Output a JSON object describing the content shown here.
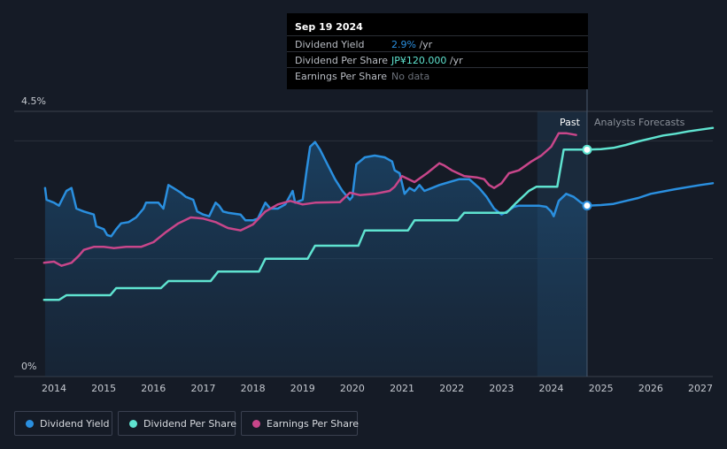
{
  "chart_data": {
    "type": "line",
    "title": "",
    "ylabel": "",
    "xlabel": "",
    "ylim": [
      0,
      4.5
    ],
    "y_ticks": [
      {
        "value": 4.5,
        "label": "4.5%"
      },
      {
        "value": 0,
        "label": "0%"
      }
    ],
    "xlim": [
      2013.8,
      2027.25
    ],
    "x_ticks": [
      {
        "value": 2014,
        "label": "2014"
      },
      {
        "value": 2015,
        "label": "2015"
      },
      {
        "value": 2016,
        "label": "2016"
      },
      {
        "value": 2017,
        "label": "2017"
      },
      {
        "value": 2018,
        "label": "2018"
      },
      {
        "value": 2019,
        "label": "2019"
      },
      {
        "value": 2020,
        "label": "2020"
      },
      {
        "value": 2021,
        "label": "2021"
      },
      {
        "value": 2022,
        "label": "2022"
      },
      {
        "value": 2023,
        "label": "2023"
      },
      {
        "value": 2024,
        "label": "2024"
      },
      {
        "value": 2025,
        "label": "2025"
      },
      {
        "value": 2026,
        "label": "2026"
      },
      {
        "value": 2027,
        "label": "2027"
      }
    ],
    "gridlines": [
      4.0,
      2.0
    ],
    "past_label": "Past",
    "forecast_label": "Analysts Forecasts",
    "past_start": 2023.72,
    "cursor_x": 2024.72,
    "series": [
      {
        "name": "Dividend Yield",
        "color": "#2a8fdf",
        "fill": true,
        "points": [
          [
            2013.82,
            3.2
          ],
          [
            2013.85,
            3.0
          ],
          [
            2014.0,
            2.95
          ],
          [
            2014.1,
            2.9
          ],
          [
            2014.25,
            3.15
          ],
          [
            2014.35,
            3.2
          ],
          [
            2014.45,
            2.85
          ],
          [
            2014.6,
            2.8
          ],
          [
            2014.8,
            2.75
          ],
          [
            2014.85,
            2.55
          ],
          [
            2015.0,
            2.5
          ],
          [
            2015.07,
            2.4
          ],
          [
            2015.15,
            2.38
          ],
          [
            2015.25,
            2.5
          ],
          [
            2015.35,
            2.6
          ],
          [
            2015.5,
            2.62
          ],
          [
            2015.65,
            2.7
          ],
          [
            2015.8,
            2.85
          ],
          [
            2015.85,
            2.95
          ],
          [
            2016.1,
            2.95
          ],
          [
            2016.2,
            2.85
          ],
          [
            2016.3,
            3.25
          ],
          [
            2016.4,
            3.2
          ],
          [
            2016.55,
            3.12
          ],
          [
            2016.65,
            3.05
          ],
          [
            2016.8,
            3.0
          ],
          [
            2016.88,
            2.8
          ],
          [
            2017.0,
            2.75
          ],
          [
            2017.12,
            2.72
          ],
          [
            2017.25,
            2.95
          ],
          [
            2017.32,
            2.9
          ],
          [
            2017.4,
            2.8
          ],
          [
            2017.5,
            2.78
          ],
          [
            2017.75,
            2.75
          ],
          [
            2017.85,
            2.65
          ],
          [
            2018.0,
            2.65
          ],
          [
            2018.1,
            2.68
          ],
          [
            2018.25,
            2.95
          ],
          [
            2018.35,
            2.85
          ],
          [
            2018.5,
            2.85
          ],
          [
            2018.65,
            2.92
          ],
          [
            2018.8,
            3.15
          ],
          [
            2018.85,
            2.95
          ],
          [
            2019.0,
            3.0
          ],
          [
            2019.08,
            3.5
          ],
          [
            2019.15,
            3.9
          ],
          [
            2019.25,
            3.98
          ],
          [
            2019.35,
            3.85
          ],
          [
            2019.5,
            3.6
          ],
          [
            2019.65,
            3.35
          ],
          [
            2019.8,
            3.15
          ],
          [
            2019.95,
            3.0
          ],
          [
            2020.0,
            3.05
          ],
          [
            2020.08,
            3.6
          ],
          [
            2020.25,
            3.72
          ],
          [
            2020.45,
            3.75
          ],
          [
            2020.65,
            3.72
          ],
          [
            2020.8,
            3.65
          ],
          [
            2020.85,
            3.5
          ],
          [
            2020.95,
            3.45
          ],
          [
            2021.05,
            3.1
          ],
          [
            2021.15,
            3.2
          ],
          [
            2021.25,
            3.15
          ],
          [
            2021.35,
            3.25
          ],
          [
            2021.45,
            3.15
          ],
          [
            2021.6,
            3.2
          ],
          [
            2021.75,
            3.25
          ],
          [
            2021.95,
            3.3
          ],
          [
            2022.15,
            3.35
          ],
          [
            2022.35,
            3.35
          ],
          [
            2022.55,
            3.2
          ],
          [
            2022.7,
            3.05
          ],
          [
            2022.85,
            2.85
          ],
          [
            2023.0,
            2.75
          ],
          [
            2023.15,
            2.82
          ],
          [
            2023.25,
            2.88
          ],
          [
            2023.35,
            2.9
          ],
          [
            2023.55,
            2.9
          ],
          [
            2023.75,
            2.9
          ],
          [
            2023.9,
            2.88
          ],
          [
            2024.0,
            2.8
          ],
          [
            2024.05,
            2.72
          ],
          [
            2024.15,
            2.98
          ],
          [
            2024.3,
            3.1
          ],
          [
            2024.45,
            3.05
          ],
          [
            2024.6,
            2.95
          ],
          [
            2024.72,
            2.9
          ]
        ]
      },
      {
        "name": "Dividend Yield Forecast",
        "color": "#2a8fdf",
        "fill": false,
        "points": [
          [
            2024.72,
            2.9
          ],
          [
            2025.0,
            2.91
          ],
          [
            2025.25,
            2.93
          ],
          [
            2025.5,
            2.98
          ],
          [
            2025.75,
            3.03
          ],
          [
            2026.0,
            3.1
          ],
          [
            2026.5,
            3.18
          ],
          [
            2027.0,
            3.25
          ],
          [
            2027.25,
            3.28
          ]
        ]
      },
      {
        "name": "Dividend Per Share",
        "color": "#5fe3d0",
        "fill": false,
        "points": [
          [
            2013.8,
            1.3
          ],
          [
            2014.1,
            1.3
          ],
          [
            2014.25,
            1.38
          ],
          [
            2015.13,
            1.38
          ],
          [
            2015.25,
            1.5
          ],
          [
            2016.15,
            1.5
          ],
          [
            2016.3,
            1.62
          ],
          [
            2017.15,
            1.62
          ],
          [
            2017.3,
            1.78
          ],
          [
            2018.12,
            1.78
          ],
          [
            2018.25,
            2.0
          ],
          [
            2019.1,
            2.0
          ],
          [
            2019.25,
            2.22
          ],
          [
            2020.12,
            2.22
          ],
          [
            2020.25,
            2.48
          ],
          [
            2021.12,
            2.48
          ],
          [
            2021.25,
            2.65
          ],
          [
            2022.12,
            2.65
          ],
          [
            2022.25,
            2.78
          ],
          [
            2023.1,
            2.78
          ],
          [
            2023.3,
            2.95
          ],
          [
            2023.55,
            3.15
          ],
          [
            2023.7,
            3.22
          ],
          [
            2024.12,
            3.22
          ],
          [
            2024.25,
            3.85
          ],
          [
            2024.72,
            3.85
          ]
        ]
      },
      {
        "name": "Dividend Per Share Forecast",
        "color": "#5fe3d0",
        "fill": false,
        "points": [
          [
            2024.72,
            3.85
          ],
          [
            2025.0,
            3.86
          ],
          [
            2025.25,
            3.88
          ],
          [
            2025.5,
            3.93
          ],
          [
            2025.75,
            3.99
          ],
          [
            2026.0,
            4.04
          ],
          [
            2026.25,
            4.09
          ],
          [
            2026.5,
            4.12
          ],
          [
            2026.75,
            4.16
          ],
          [
            2027.0,
            4.19
          ],
          [
            2027.25,
            4.22
          ]
        ]
      },
      {
        "name": "Earnings Per Share",
        "color": "#c8468a",
        "fill": false,
        "points": [
          [
            2013.8,
            1.93
          ],
          [
            2014.0,
            1.95
          ],
          [
            2014.15,
            1.88
          ],
          [
            2014.35,
            1.93
          ],
          [
            2014.5,
            2.05
          ],
          [
            2014.6,
            2.15
          ],
          [
            2014.8,
            2.2
          ],
          [
            2015.0,
            2.2
          ],
          [
            2015.2,
            2.18
          ],
          [
            2015.45,
            2.2
          ],
          [
            2015.75,
            2.2
          ],
          [
            2016.0,
            2.28
          ],
          [
            2016.25,
            2.45
          ],
          [
            2016.5,
            2.6
          ],
          [
            2016.75,
            2.7
          ],
          [
            2017.0,
            2.68
          ],
          [
            2017.25,
            2.62
          ],
          [
            2017.5,
            2.52
          ],
          [
            2017.75,
            2.48
          ],
          [
            2018.0,
            2.58
          ],
          [
            2018.25,
            2.8
          ],
          [
            2018.5,
            2.92
          ],
          [
            2018.75,
            2.98
          ],
          [
            2019.0,
            2.92
          ],
          [
            2019.25,
            2.95
          ],
          [
            2019.75,
            2.96
          ],
          [
            2019.95,
            3.12
          ],
          [
            2020.15,
            3.08
          ],
          [
            2020.45,
            3.1
          ],
          [
            2020.75,
            3.15
          ],
          [
            2020.85,
            3.22
          ],
          [
            2021.0,
            3.4
          ],
          [
            2021.25,
            3.3
          ],
          [
            2021.5,
            3.45
          ],
          [
            2021.75,
            3.62
          ],
          [
            2021.85,
            3.58
          ],
          [
            2022.0,
            3.5
          ],
          [
            2022.25,
            3.4
          ],
          [
            2022.5,
            3.38
          ],
          [
            2022.65,
            3.35
          ],
          [
            2022.75,
            3.25
          ],
          [
            2022.85,
            3.2
          ],
          [
            2023.0,
            3.28
          ],
          [
            2023.15,
            3.45
          ],
          [
            2023.35,
            3.5
          ],
          [
            2023.6,
            3.65
          ],
          [
            2023.8,
            3.75
          ],
          [
            2024.0,
            3.9
          ],
          [
            2024.15,
            4.13
          ],
          [
            2024.3,
            4.13
          ],
          [
            2024.5,
            4.1
          ]
        ]
      }
    ]
  },
  "tooltip": {
    "date": "Sep 19 2024",
    "rows": [
      {
        "label": "Dividend Yield",
        "value": "2.9%",
        "unit": " /yr",
        "color": "#2a8fdf"
      },
      {
        "label": "Dividend Per Share",
        "value": "JP¥120.000",
        "unit": " /yr",
        "color": "#5fe3d0"
      },
      {
        "label": "Earnings Per Share",
        "value": "No data",
        "unit": "",
        "color": "#6b7079"
      }
    ]
  },
  "legend": [
    {
      "label": "Dividend Yield",
      "color": "#2a8fdf"
    },
    {
      "label": "Dividend Per Share",
      "color": "#5fe3d0"
    },
    {
      "label": "Earnings Per Share",
      "color": "#c8468a"
    }
  ],
  "colors": {
    "background": "#151b26",
    "grid": "#2a303c",
    "axis_text": "#c4c8cf",
    "past_region": "#1b2c3f"
  }
}
